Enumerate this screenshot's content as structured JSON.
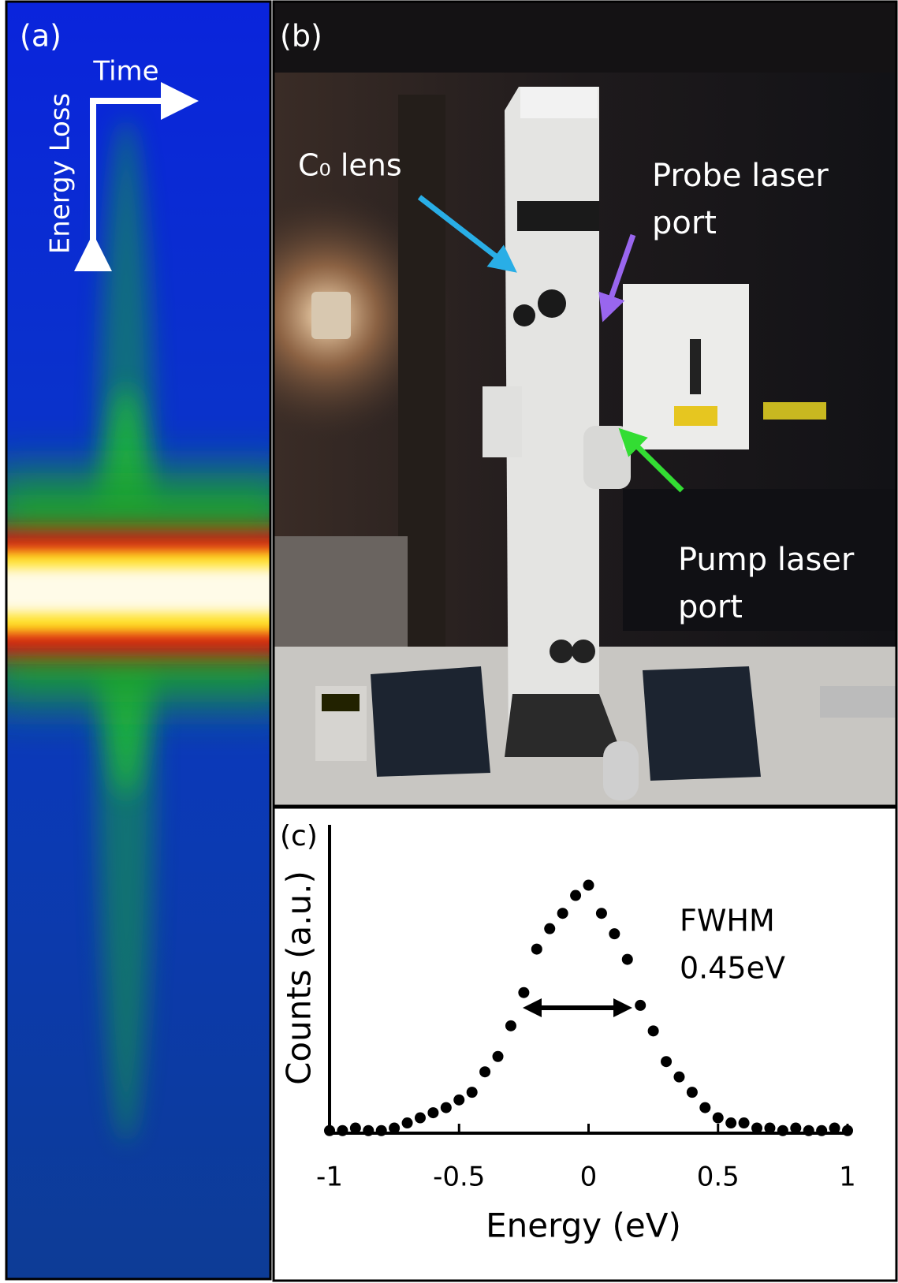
{
  "panel_a": {
    "label": "(a)",
    "time_label": "Time",
    "energy_loss_label": "Energy Loss"
  },
  "panel_b": {
    "label": "(b)",
    "c0_label": "C₀ lens",
    "probe_label": [
      "Probe laser",
      "port"
    ],
    "pump_label": [
      "Pump laser",
      "port"
    ]
  },
  "chart_data": {
    "type": "scatter",
    "panel_label": "(c)",
    "xlabel": "Energy (eV)",
    "ylabel": "Counts (a.u.)",
    "annotation": [
      "FWHM",
      "0.45eV"
    ],
    "color": "#000000",
    "x": [
      -1,
      -0.95,
      -0.9,
      -0.85,
      -0.8,
      -0.75,
      -0.7,
      -0.65,
      -0.6,
      -0.55,
      -0.5,
      -0.45,
      -0.4,
      -0.35,
      -0.3,
      -0.25,
      -0.2,
      -0.15,
      -0.1,
      -0.05,
      0,
      0.05,
      0.1,
      0.15,
      0.2,
      0.25,
      0.3,
      0.35,
      0.4,
      0.45,
      0.5,
      0.55,
      0.6,
      0.65,
      0.7,
      0.75,
      0.8,
      0.85,
      0.9,
      0.95,
      1
    ],
    "values": [
      0.01,
      0.01,
      0.02,
      0.01,
      0.01,
      0.02,
      0.04,
      0.06,
      0.08,
      0.1,
      0.13,
      0.16,
      0.24,
      0.3,
      0.42,
      0.55,
      0.72,
      0.8,
      0.86,
      0.93,
      0.97,
      0.86,
      0.78,
      0.68,
      0.5,
      0.4,
      0.28,
      0.22,
      0.16,
      0.1,
      0.06,
      0.04,
      0.04,
      0.02,
      0.02,
      0.01,
      0.02,
      0.01,
      0.01,
      0.02,
      0.01
    ],
    "xlim": [
      -1,
      1
    ],
    "xticks": [
      -1,
      -0.5,
      0,
      0.5,
      1
    ],
    "ylim": [
      0,
      1.2
    ]
  }
}
